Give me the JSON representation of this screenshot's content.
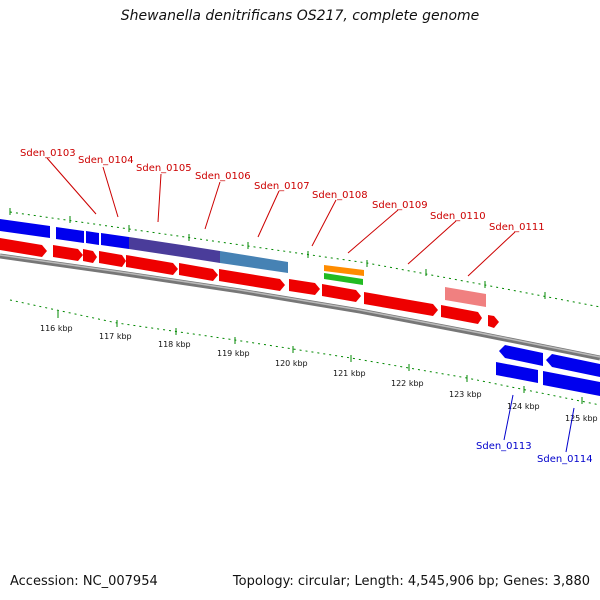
{
  "title": "Shewanella denitrificans OS217, complete genome",
  "accession": "Accession: NC_007954",
  "summary": "Topology: circular; Length: 4,545,906 bp; Genes: 3,880",
  "colors": {
    "forward_cds": "#ff0000",
    "reverse_cds": "#0000ee",
    "backbone": "#888888",
    "ticks": "#008800",
    "forward_label": "#cc0000",
    "reverse_label": "#0000cc"
  },
  "scale_labels": [
    "116 kbp",
    "117 kbp",
    "118 kbp",
    "119 kbp",
    "120 kbp",
    "121 kbp",
    "122 kbp",
    "123 kbp",
    "124 kbp",
    "125 kbp"
  ],
  "gene_labels_forward": [
    "Sden_0103",
    "Sden_0104",
    "Sden_0105",
    "Sden_0106",
    "Sden_0107",
    "Sden_0108",
    "Sden_0109",
    "Sden_0110",
    "Sden_0111"
  ],
  "gene_labels_reverse": [
    "Sden_0113",
    "Sden_0114"
  ]
}
